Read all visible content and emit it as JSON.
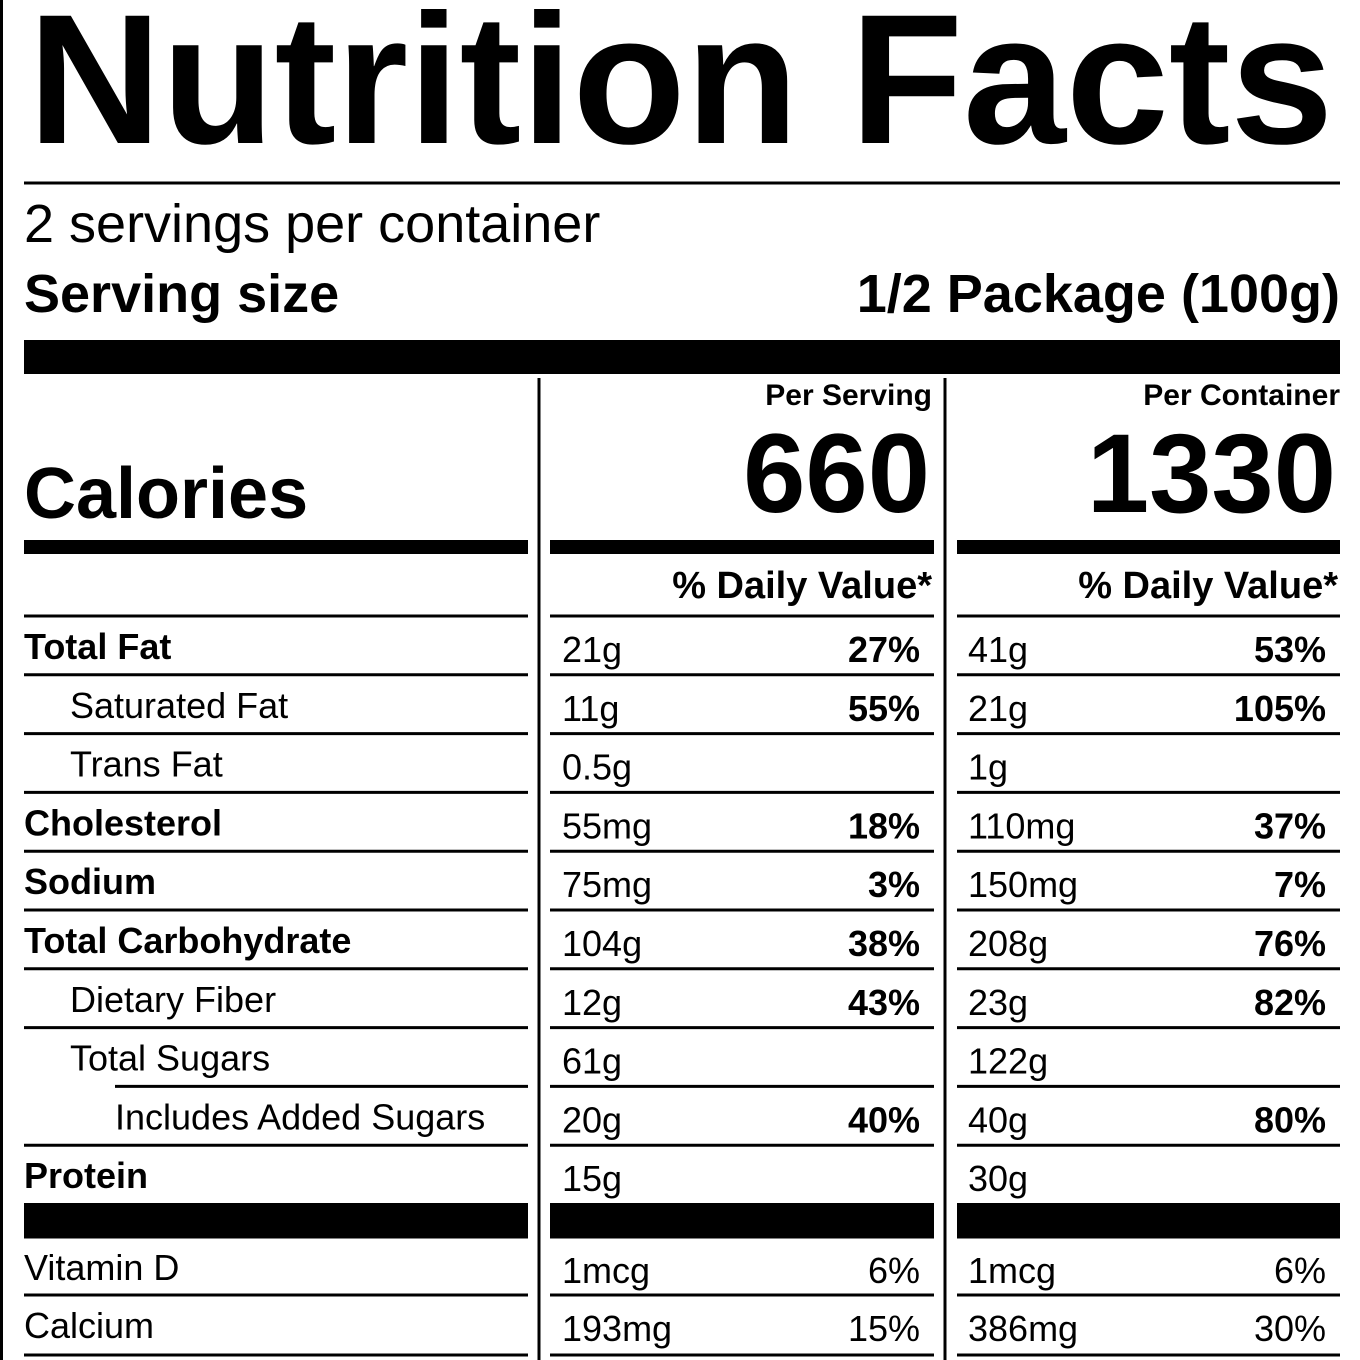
{
  "title": "Nutrition Facts",
  "servings": "2 servings per container",
  "serving_size": {
    "label": "Serving size",
    "value": "1/2 Package (100g)"
  },
  "columns": {
    "per_serving": "Per Serving",
    "per_container": "Per Container"
  },
  "calories": {
    "label": "Calories",
    "per_serving": 660,
    "per_container": 1330
  },
  "daily_value_header": {
    "per_serving": "% Daily Value*",
    "per_container": "% Daily Value*"
  },
  "rows": [
    {
      "name": "Total Fat",
      "per_serving": [
        "21g",
        "27%"
      ],
      "per_container": [
        "41g",
        "53%"
      ]
    },
    {
      "name": "Saturated Fat",
      "per_serving": [
        "11g",
        "55%"
      ],
      "per_container": [
        "21g",
        "105%"
      ]
    },
    {
      "name": "Trans Fat",
      "per_serving": [
        "0.5g"
      ],
      "per_container": [
        "1g"
      ]
    },
    {
      "name": "Cholesterol",
      "per_serving": [
        "55mg",
        "18%"
      ],
      "per_container": [
        "110mg",
        "37%"
      ]
    },
    {
      "name": "Sodium",
      "per_serving": [
        "75mg",
        "3%"
      ],
      "per_container": [
        "150mg",
        "7%"
      ]
    },
    {
      "name": "Total Carbohydrate",
      "per_serving": [
        "104g",
        "38%"
      ],
      "per_container": [
        "208g",
        "76%"
      ]
    },
    {
      "name": "Dietary Fiber",
      "per_serving": [
        "12g",
        "43%"
      ],
      "per_container": [
        "23g",
        "82%"
      ]
    },
    {
      "name": "Total Sugars",
      "per_serving": [
        "61g"
      ],
      "per_container": [
        "122g"
      ]
    },
    {
      "name": "Includes Added Sugars",
      "per_serving": [
        "20g",
        "40%"
      ],
      "per_container": [
        "40g",
        "80%"
      ]
    },
    {
      "name": "Protein",
      "per_serving": [
        "15g"
      ],
      "per_container": [
        "30g"
      ]
    }
  ],
  "vitamins": [
    {
      "name": "Vitamin D",
      "per_serving": [
        "1mcg",
        "6%"
      ],
      "per_container": [
        "1mcg",
        "6%"
      ]
    },
    {
      "name": "Calcium",
      "per_serving": [
        "193mg",
        "15%"
      ],
      "per_container": [
        "386mg",
        "30%"
      ]
    }
  ]
}
